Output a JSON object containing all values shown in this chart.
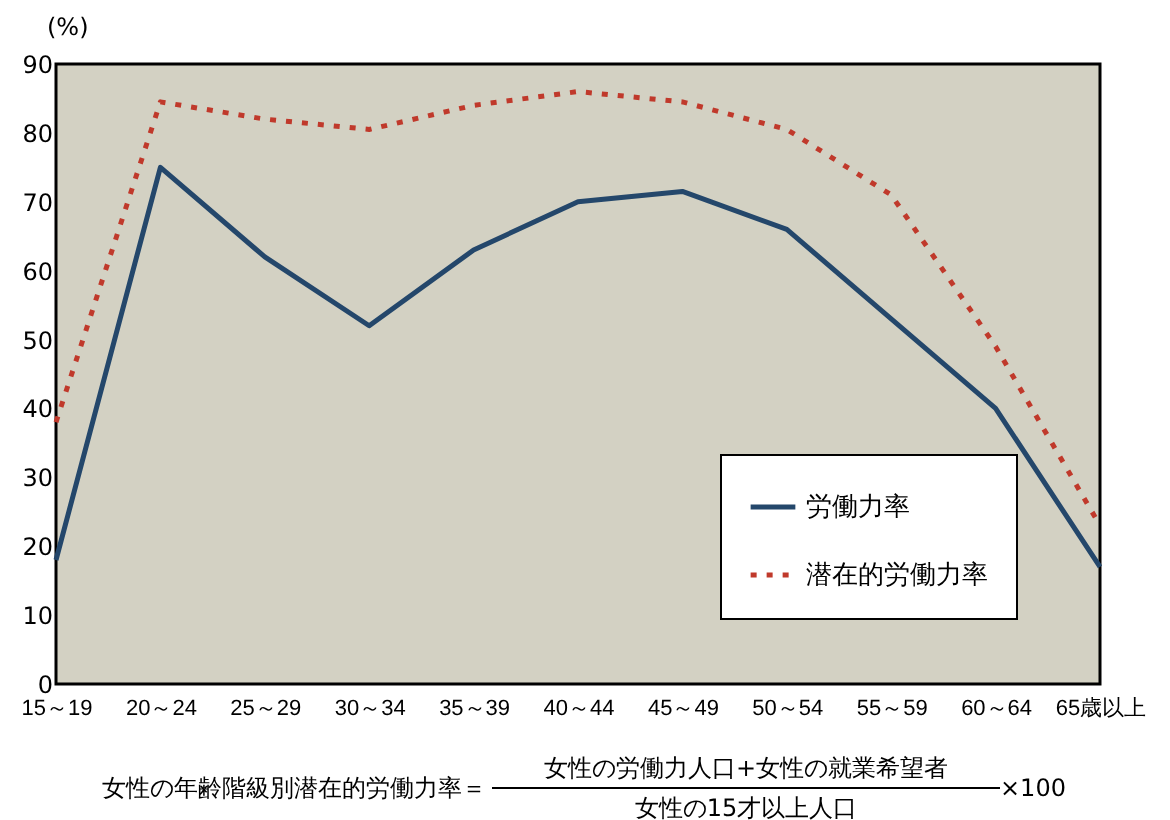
{
  "chart_data": {
    "type": "line",
    "ylabel": "(%)",
    "categories": [
      "15～19",
      "20～24",
      "25～29",
      "30～34",
      "35～39",
      "40～44",
      "45～49",
      "50～54",
      "55～59",
      "60～64",
      "65歳以上"
    ],
    "series": [
      {
        "name": "労働力率",
        "color": "#24476b",
        "line_style": "solid",
        "values": [
          18,
          75,
          62,
          52,
          63,
          70,
          71.5,
          66,
          53,
          40,
          17
        ]
      },
      {
        "name": "潜在的労働力率",
        "color": "#c0392b",
        "line_style": "dotted",
        "values": [
          38,
          84.5,
          82,
          80.5,
          84,
          86,
          84.5,
          80.5,
          71,
          49,
          23
        ]
      }
    ],
    "ylim": [
      0,
      90
    ],
    "yticks": [
      0,
      10,
      20,
      30,
      40,
      50,
      60,
      70,
      80,
      90
    ],
    "grid": false,
    "legend": "bottom right",
    "marker": "none",
    "annotations": [
      "女性の年齢階級別潜在的労働力率＝",
      "女性の労働力人口+女性の就業希望者",
      "女性の15才以上人口",
      "×100"
    ]
  }
}
